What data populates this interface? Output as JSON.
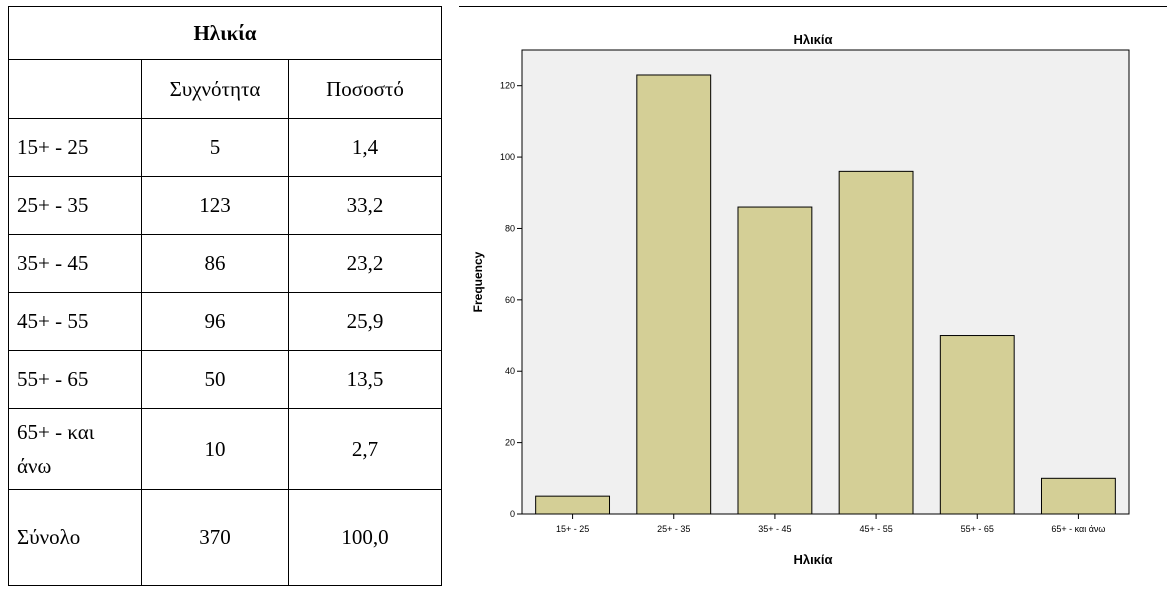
{
  "table": {
    "title": "Ηλικία",
    "headers": [
      "",
      "Συχνότητα",
      "Ποσοστό"
    ],
    "rows": [
      {
        "label": "15+ - 25",
        "freq": "5",
        "pct": "1,4"
      },
      {
        "label": "25+ - 35",
        "freq": "123",
        "pct": "33,2"
      },
      {
        "label": "35+ - 45",
        "freq": "86",
        "pct": "23,2"
      },
      {
        "label": "45+ - 55",
        "freq": "96",
        "pct": "25,9"
      },
      {
        "label": "55+ - 65",
        "freq": "50",
        "pct": "13,5"
      },
      {
        "label": "65+ - και άνω",
        "freq": "10",
        "pct": "2,7"
      }
    ],
    "total": {
      "label": "Σύνολο",
      "freq": "370",
      "pct": "100,0"
    }
  },
  "chart_data": {
    "type": "bar",
    "title": "Ηλικία",
    "xlabel": "Ηλικία",
    "ylabel": "Frequency",
    "categories": [
      "15+ - 25",
      "25+ - 35",
      "35+ - 45",
      "45+ - 55",
      "55+ - 65",
      "65+ - και άνω"
    ],
    "values": [
      5,
      123,
      86,
      96,
      50,
      10
    ],
    "ylim": [
      0,
      130
    ],
    "yticks": [
      0,
      20,
      40,
      60,
      80,
      100,
      120
    ],
    "grid": false,
    "colors": {
      "bar": "#d4cf96",
      "bar_stroke": "#000000",
      "plot_bg": "#f0f0f0"
    }
  }
}
